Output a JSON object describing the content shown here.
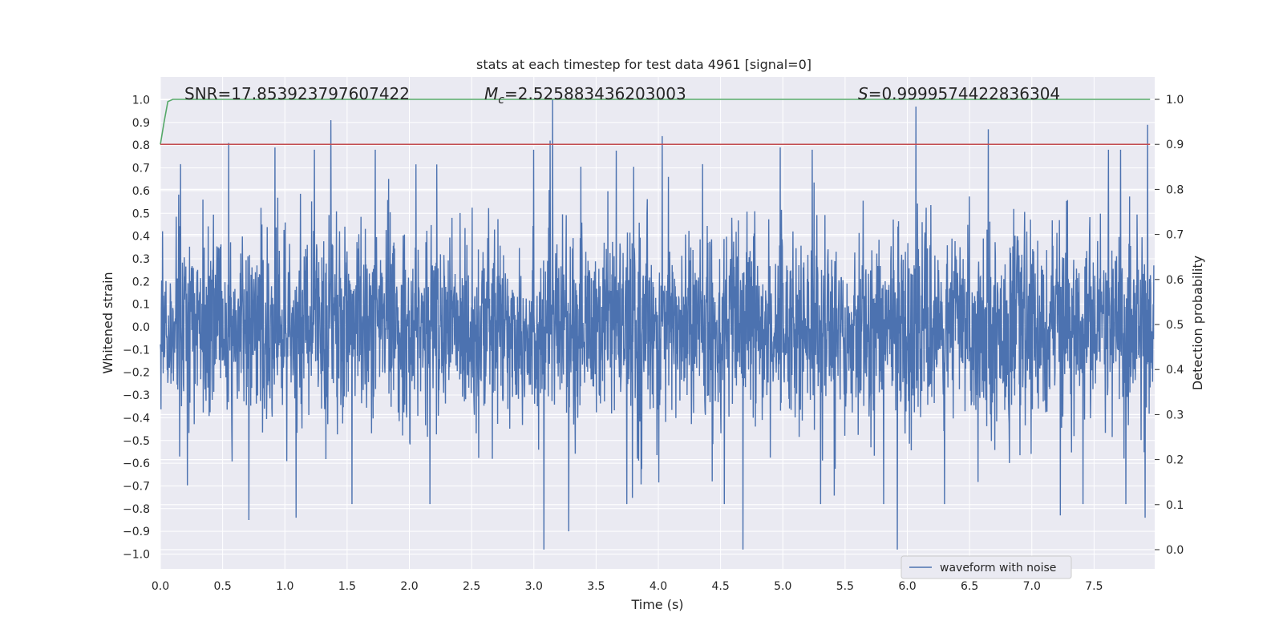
{
  "chart_data": {
    "type": "line",
    "title": "stats at each timestep for test data 4961 [signal=0]",
    "xlabel": "Time (s)",
    "ylabel": "Whitened strain",
    "y2label": "Detection probability",
    "xlim": [
      0,
      8
    ],
    "ylim": [
      -1.08,
      1.1
    ],
    "y2lim": [
      -0.045,
      1.045
    ],
    "x_ticks": [
      "0.0",
      "0.5",
      "1.0",
      "1.5",
      "2.0",
      "2.5",
      "3.0",
      "3.5",
      "4.0",
      "4.5",
      "5.0",
      "5.5",
      "6.0",
      "6.5",
      "7.0",
      "7.5"
    ],
    "y_ticks": [
      "1.0",
      "0.9",
      "0.8",
      "0.7",
      "0.6",
      "0.5",
      "0.4",
      "0.3",
      "0.2",
      "0.1",
      "0.0",
      "−0.1",
      "−0.2",
      "−0.3",
      "−0.4",
      "−0.5",
      "−0.6",
      "−0.7",
      "−0.8",
      "−0.9",
      "−1.0"
    ],
    "y2_ticks": [
      "1.0",
      "0.9",
      "0.8",
      "0.7",
      "0.6",
      "0.5",
      "0.4",
      "0.3",
      "0.2",
      "0.1",
      "0.0"
    ],
    "grid": true,
    "legend_position": "lower-right",
    "annotations": {
      "snr": "SNR=17.853923797607422",
      "mc_symbol": "M",
      "mc_sub": "c",
      "mc_value": "=2.525883436203003",
      "s_symbol": "S",
      "s_value": "=0.9999574422836304"
    },
    "series": [
      {
        "name": "waveform with noise",
        "axis": "left",
        "color": "#4c72b0",
        "kind": "noise",
        "typical_envelope": [
          -0.5,
          0.6
        ],
        "peaks": [
          {
            "x": 0.55,
            "y": 0.81
          },
          {
            "x": 0.92,
            "y": 0.79
          },
          {
            "x": 1.37,
            "y": 0.91
          },
          {
            "x": 3.13,
            "y": 0.82
          },
          {
            "x": 3.15,
            "y": 1.0
          },
          {
            "x": 4.03,
            "y": 0.84
          },
          {
            "x": 4.98,
            "y": 0.79
          },
          {
            "x": 6.07,
            "y": 0.97
          },
          {
            "x": 6.65,
            "y": 0.87
          },
          {
            "x": 7.93,
            "y": 0.89
          },
          {
            "x": 0.71,
            "y": -0.85
          },
          {
            "x": 1.09,
            "y": -0.84
          },
          {
            "x": 3.08,
            "y": -0.98
          },
          {
            "x": 3.28,
            "y": -0.9
          },
          {
            "x": 4.68,
            "y": -0.98
          },
          {
            "x": 5.92,
            "y": -0.98
          },
          {
            "x": 7.23,
            "y": -0.83
          },
          {
            "x": 7.91,
            "y": -0.84
          }
        ]
      },
      {
        "name": "",
        "axis": "right",
        "color": "#55a868",
        "x": [
          0.0,
          0.03,
          0.06,
          0.1,
          0.2,
          7.95
        ],
        "y": [
          0.9,
          0.95,
          0.995,
          1.0,
          1.0,
          1.0
        ]
      },
      {
        "name": "",
        "axis": "right",
        "color": "#c44e52",
        "x": [
          0.0,
          7.95
        ],
        "y": [
          0.9,
          0.9
        ]
      }
    ]
  }
}
